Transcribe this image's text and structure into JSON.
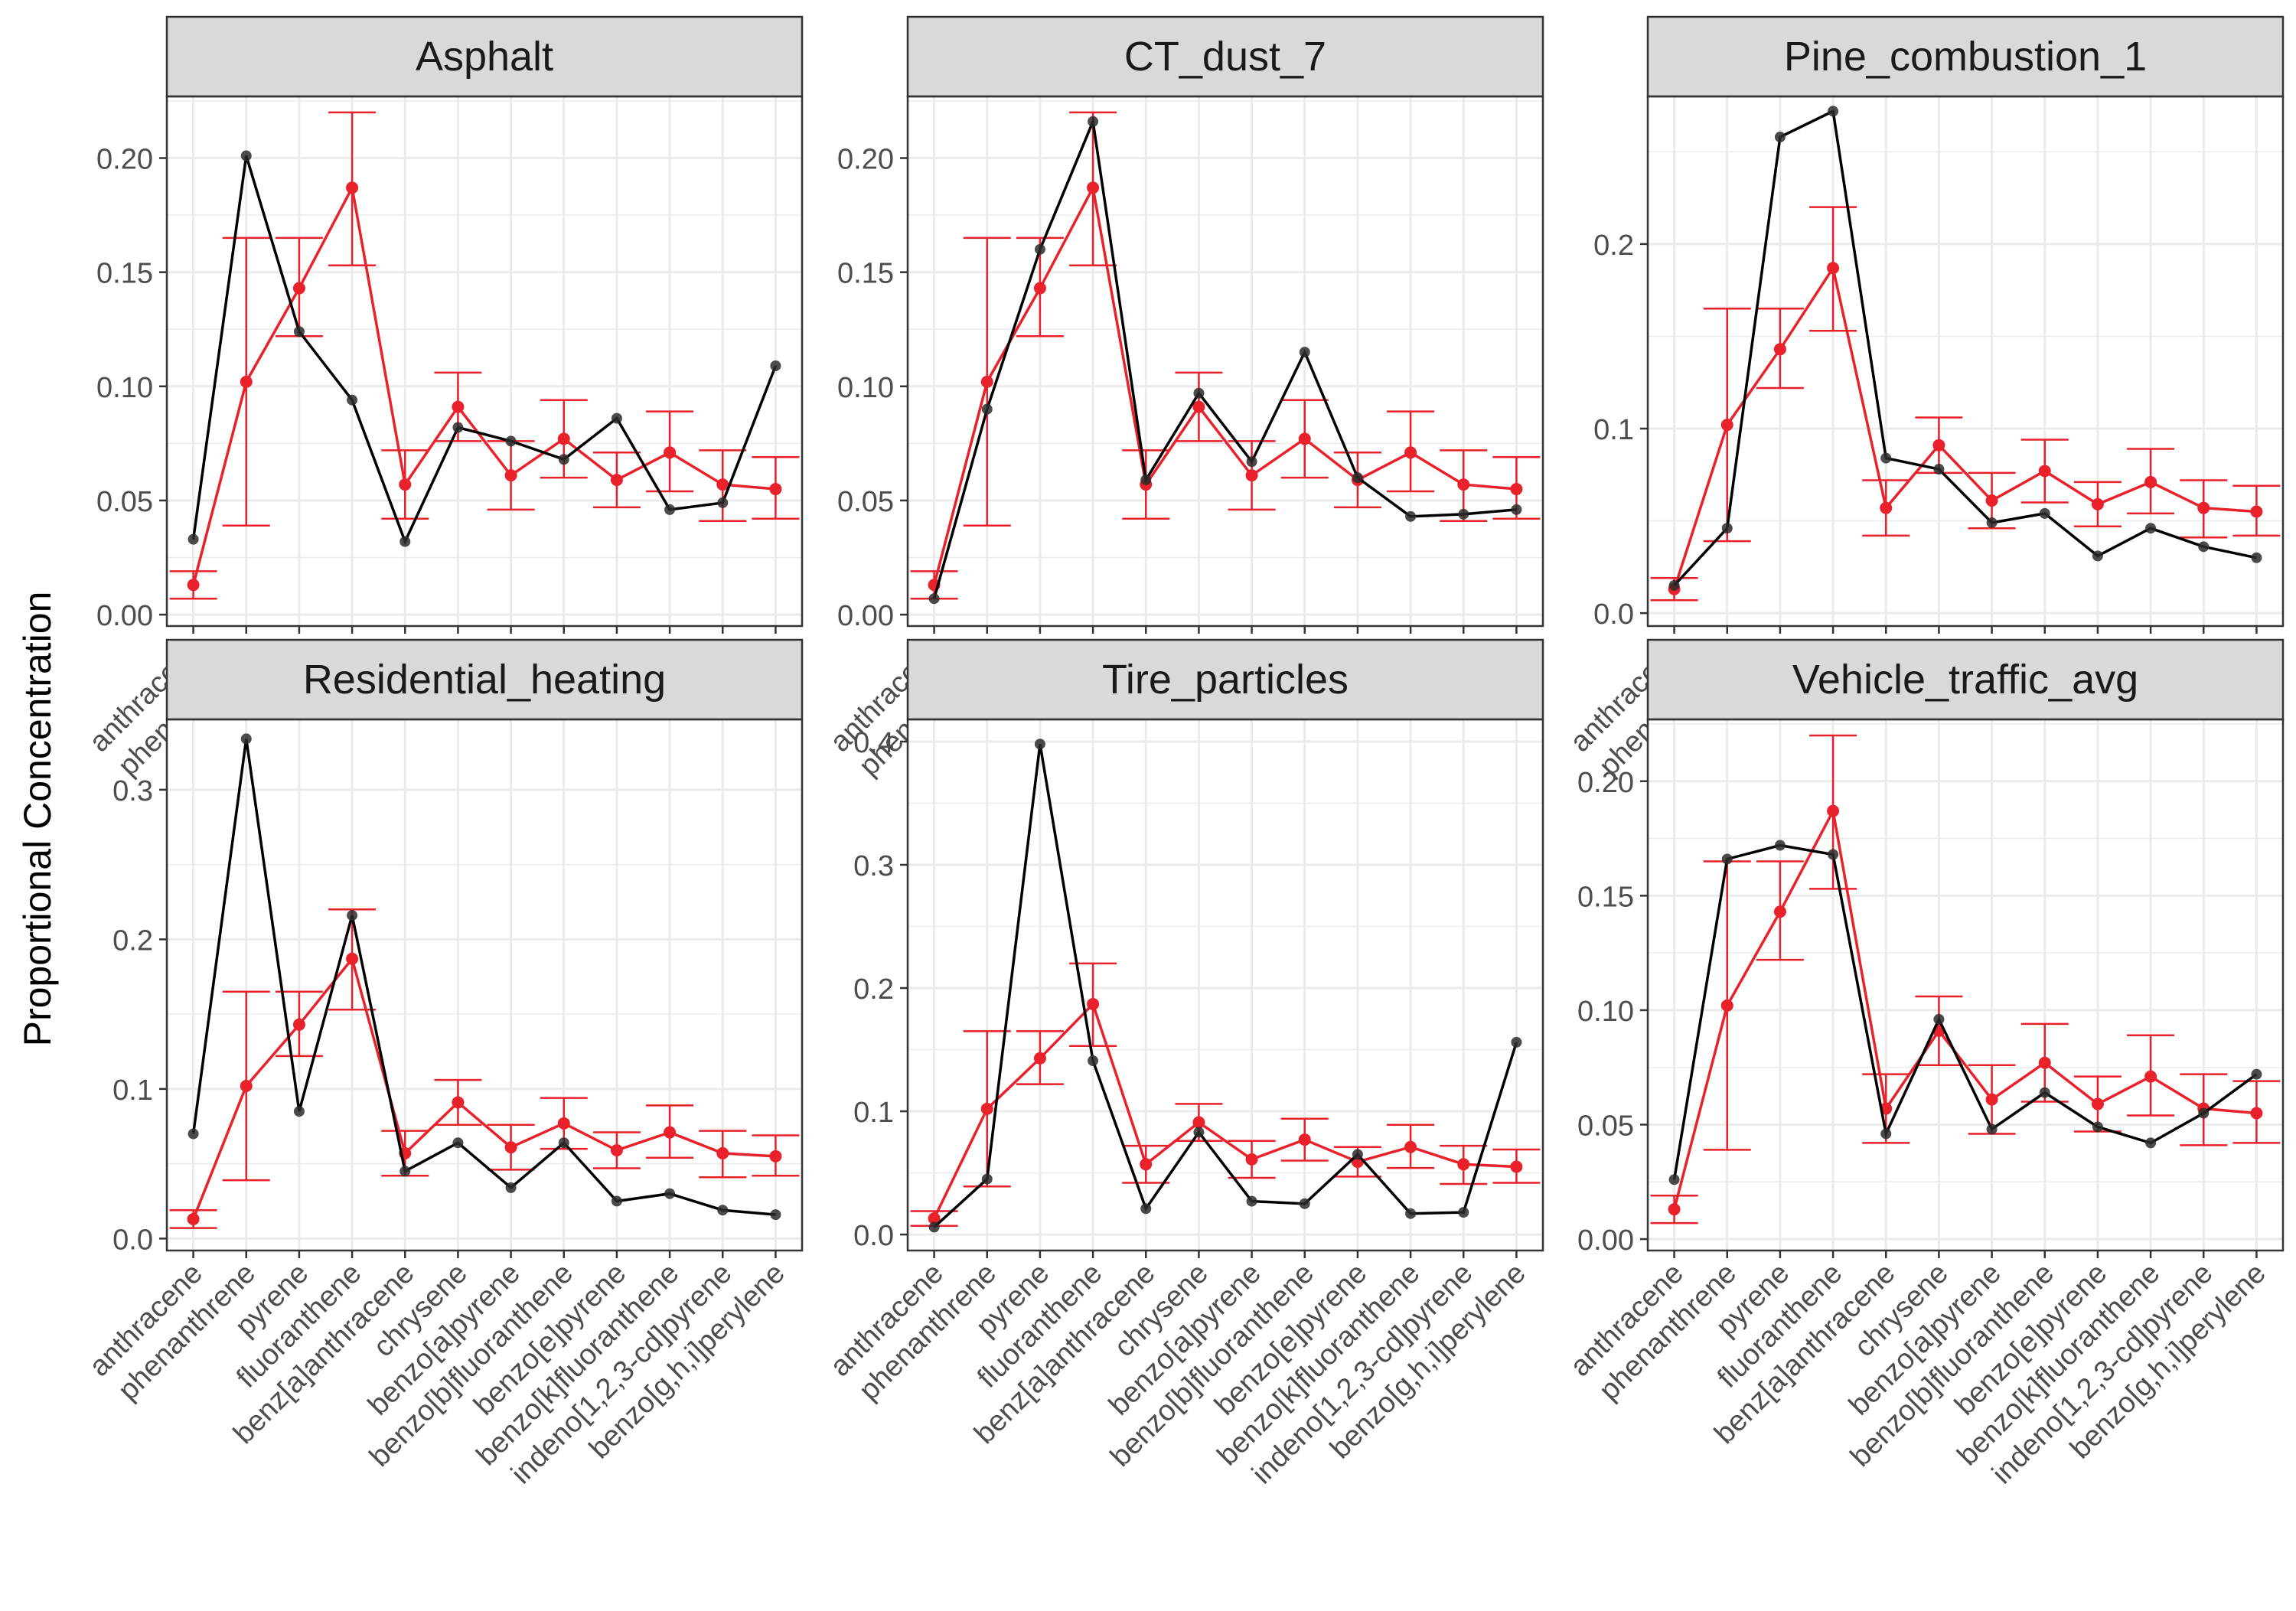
{
  "ylabel": "Proportional Concentration",
  "colors": {
    "observed": "#000000",
    "reference": "#e8212a",
    "strip_fill": "#d9d9d9",
    "grid": "#ebebeb",
    "tick_text": "#4d4d4d"
  },
  "chart_data": [
    {
      "type": "line",
      "title": "Asphalt",
      "ylim": [
        -0.005,
        0.227
      ],
      "yticks": [
        "0.00",
        "0.05",
        "0.10",
        "0.15",
        "0.20"
      ],
      "categories": [
        "anthracene",
        "phenanthrene",
        "pyrene",
        "fluoranthene",
        "benz[a]anthracene",
        "chrysene",
        "benzo[a]pyrene",
        "benzo[b]fluoranthene",
        "benzo[e]pyrene",
        "benzo[k]fluoranthene",
        "indeno[1,2,3-cd]pyrene",
        "benzo[g,h,i]perylene"
      ],
      "series": [
        {
          "values": [
            0.033,
            0.201,
            0.124,
            0.094,
            0.032,
            0.082,
            0.076,
            0.068,
            0.086,
            0.046,
            0.049,
            0.109
          ]
        },
        {
          "values": [
            0.013,
            0.102,
            0.143,
            0.187,
            0.057,
            0.091,
            0.061,
            0.077,
            0.059,
            0.071,
            0.057,
            0.055
          ],
          "lower": [
            0.007,
            0.039,
            0.122,
            0.153,
            0.042,
            0.076,
            0.046,
            0.06,
            0.047,
            0.054,
            0.041,
            0.042
          ],
          "upper": [
            0.019,
            0.165,
            0.165,
            0.22,
            0.072,
            0.106,
            0.076,
            0.094,
            0.071,
            0.089,
            0.072,
            0.069
          ]
        }
      ]
    },
    {
      "type": "line",
      "title": "CT_dust_7",
      "ylim": [
        -0.005,
        0.227
      ],
      "yticks": [
        "0.00",
        "0.05",
        "0.10",
        "0.15",
        "0.20"
      ],
      "categories": [
        "anthracene",
        "phenanthrene",
        "pyrene",
        "fluoranthene",
        "benz[a]anthracene",
        "chrysene",
        "benzo[a]pyrene",
        "benzo[b]fluoranthene",
        "benzo[e]pyrene",
        "benzo[k]fluoranthene",
        "indeno[1,2,3-cd]pyrene",
        "benzo[g,h,i]perylene"
      ],
      "series": [
        {
          "values": [
            0.007,
            0.09,
            0.16,
            0.216,
            0.059,
            0.097,
            0.067,
            0.115,
            0.06,
            0.043,
            0.044,
            0.046
          ]
        },
        {
          "values": [
            0.013,
            0.102,
            0.143,
            0.187,
            0.057,
            0.091,
            0.061,
            0.077,
            0.059,
            0.071,
            0.057,
            0.055
          ],
          "lower": [
            0.007,
            0.039,
            0.122,
            0.153,
            0.042,
            0.076,
            0.046,
            0.06,
            0.047,
            0.054,
            0.041,
            0.042
          ],
          "upper": [
            0.019,
            0.165,
            0.165,
            0.22,
            0.072,
            0.106,
            0.076,
            0.094,
            0.071,
            0.089,
            0.072,
            0.069
          ]
        }
      ]
    },
    {
      "type": "line",
      "title": "Pine_combustion_1",
      "ylim": [
        -0.007,
        0.28
      ],
      "yticks": [
        "0.0",
        "0.1",
        "0.2"
      ],
      "categories": [
        "anthracene",
        "phenanthrene",
        "pyrene",
        "fluoranthene",
        "benz[a]anthracene",
        "chrysene",
        "benzo[a]pyrene",
        "benzo[b]fluoranthene",
        "benzo[e]pyrene",
        "benzo[k]fluoranthene",
        "indeno[1,2,3-cd]pyrene",
        "benzo[g,h,i]perylene"
      ],
      "series": [
        {
          "values": [
            0.015,
            0.046,
            0.258,
            0.272,
            0.084,
            0.078,
            0.049,
            0.054,
            0.031,
            0.046,
            0.036,
            0.03
          ]
        },
        {
          "values": [
            0.013,
            0.102,
            0.143,
            0.187,
            0.057,
            0.091,
            0.061,
            0.077,
            0.059,
            0.071,
            0.057,
            0.055
          ],
          "lower": [
            0.007,
            0.039,
            0.122,
            0.153,
            0.042,
            0.076,
            0.046,
            0.06,
            0.047,
            0.054,
            0.041,
            0.042
          ],
          "upper": [
            0.019,
            0.165,
            0.165,
            0.22,
            0.072,
            0.106,
            0.076,
            0.094,
            0.071,
            0.089,
            0.072,
            0.069
          ]
        }
      ]
    },
    {
      "type": "line",
      "title": "Residential_heating",
      "ylim": [
        -0.008,
        0.347
      ],
      "yticks": [
        "0.0",
        "0.1",
        "0.2",
        "0.3"
      ],
      "categories": [
        "anthracene",
        "phenanthrene",
        "pyrene",
        "fluoranthene",
        "benz[a]anthracene",
        "chrysene",
        "benzo[a]pyrene",
        "benzo[b]fluoranthene",
        "benzo[e]pyrene",
        "benzo[k]fluoranthene",
        "indeno[1,2,3-cd]pyrene",
        "benzo[g,h,i]perylene"
      ],
      "series": [
        {
          "values": [
            0.07,
            0.334,
            0.085,
            0.216,
            0.045,
            0.064,
            0.034,
            0.064,
            0.025,
            0.03,
            0.019,
            0.016
          ]
        },
        {
          "values": [
            0.013,
            0.102,
            0.143,
            0.187,
            0.057,
            0.091,
            0.061,
            0.077,
            0.059,
            0.071,
            0.057,
            0.055
          ],
          "lower": [
            0.007,
            0.039,
            0.122,
            0.153,
            0.042,
            0.076,
            0.046,
            0.06,
            0.047,
            0.054,
            0.041,
            0.042
          ],
          "upper": [
            0.019,
            0.165,
            0.165,
            0.22,
            0.072,
            0.106,
            0.076,
            0.094,
            0.071,
            0.089,
            0.072,
            0.069
          ]
        }
      ]
    },
    {
      "type": "line",
      "title": "Tire_particles",
      "ylim": [
        -0.013,
        0.418
      ],
      "yticks": [
        "0.0",
        "0.1",
        "0.2",
        "0.3",
        "0.4"
      ],
      "categories": [
        "anthracene",
        "phenanthrene",
        "pyrene",
        "fluoranthene",
        "benz[a]anthracene",
        "chrysene",
        "benzo[a]pyrene",
        "benzo[b]fluoranthene",
        "benzo[e]pyrene",
        "benzo[k]fluoranthene",
        "indeno[1,2,3-cd]pyrene",
        "benzo[g,h,i]perylene"
      ],
      "series": [
        {
          "values": [
            0.006,
            0.045,
            0.398,
            0.141,
            0.021,
            0.083,
            0.027,
            0.025,
            0.065,
            0.017,
            0.018,
            0.156
          ]
        },
        {
          "values": [
            0.013,
            0.102,
            0.143,
            0.187,
            0.057,
            0.091,
            0.061,
            0.077,
            0.059,
            0.071,
            0.057,
            0.055
          ],
          "lower": [
            0.007,
            0.039,
            0.122,
            0.153,
            0.042,
            0.076,
            0.046,
            0.06,
            0.047,
            0.054,
            0.041,
            0.042
          ],
          "upper": [
            0.019,
            0.165,
            0.165,
            0.22,
            0.072,
            0.106,
            0.076,
            0.094,
            0.071,
            0.089,
            0.072,
            0.069
          ]
        }
      ]
    },
    {
      "type": "line",
      "title": "Vehicle_traffic_avg",
      "ylim": [
        -0.005,
        0.227
      ],
      "yticks": [
        "0.00",
        "0.05",
        "0.10",
        "0.15",
        "0.20"
      ],
      "categories": [
        "anthracene",
        "phenanthrene",
        "pyrene",
        "fluoranthene",
        "benz[a]anthracene",
        "chrysene",
        "benzo[a]pyrene",
        "benzo[b]fluoranthene",
        "benzo[e]pyrene",
        "benzo[k]fluoranthene",
        "indeno[1,2,3-cd]pyrene",
        "benzo[g,h,i]perylene"
      ],
      "series": [
        {
          "values": [
            0.026,
            0.166,
            0.172,
            0.168,
            0.046,
            0.096,
            0.048,
            0.064,
            0.049,
            0.042,
            0.055,
            0.072
          ]
        },
        {
          "values": [
            0.013,
            0.102,
            0.143,
            0.187,
            0.057,
            0.091,
            0.061,
            0.077,
            0.059,
            0.071,
            0.057,
            0.055
          ],
          "lower": [
            0.007,
            0.039,
            0.122,
            0.153,
            0.042,
            0.076,
            0.046,
            0.06,
            0.047,
            0.054,
            0.041,
            0.042
          ],
          "upper": [
            0.019,
            0.165,
            0.165,
            0.22,
            0.072,
            0.106,
            0.076,
            0.094,
            0.071,
            0.089,
            0.072,
            0.069
          ]
        }
      ]
    }
  ]
}
